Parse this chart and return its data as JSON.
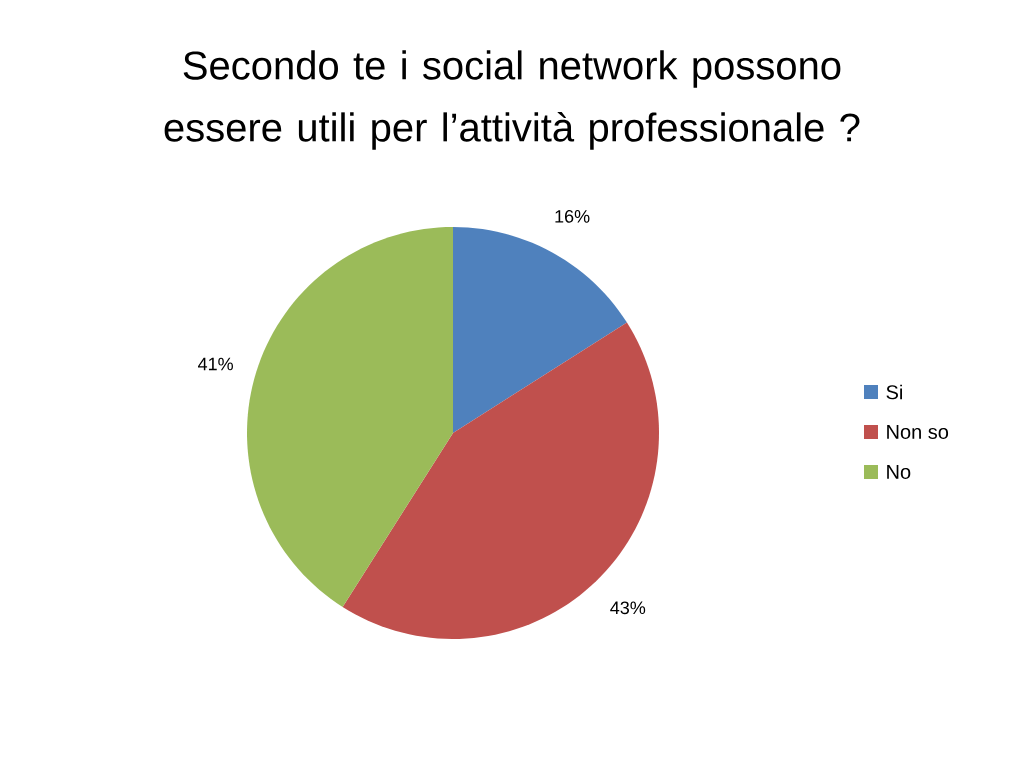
{
  "chart_data": {
    "type": "pie",
    "title": "Secondo te i social network possono essere utili per l’attività professionale ?",
    "categories": [
      "Si",
      "Non so",
      "No"
    ],
    "values": [
      16,
      43,
      41
    ],
    "value_labels": [
      "16%",
      "43%",
      "41%"
    ],
    "colors": [
      "#4f81bd",
      "#c0504d",
      "#9bbb59"
    ],
    "legend": "right"
  }
}
